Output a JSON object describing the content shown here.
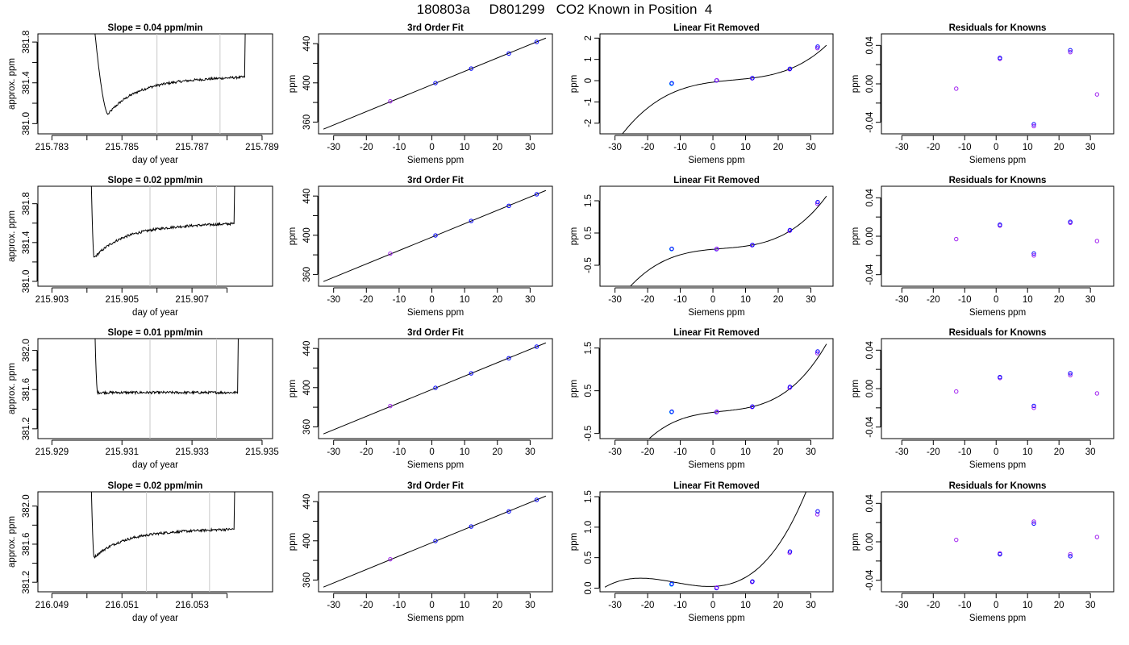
{
  "page": {
    "title": "180803a     D801299   CO2 Known in Position  4"
  },
  "colors": {
    "axis": "#000000",
    "line": "#000000",
    "vline": "#c8c8c8",
    "point_blue": "#0000ff",
    "point_purple": "#a020f0",
    "point_cyan": "#00bfff"
  },
  "chart_data": [
    {
      "type": "line",
      "row": 1,
      "panel": "timeseries",
      "title": "Slope =  0.04  ppm/min",
      "xlabel": "day of year",
      "ylabel": "approx. ppm",
      "xlim": [
        215.7826,
        215.7893
      ],
      "ylim": [
        380.9,
        381.88
      ],
      "xticks": [
        215.783,
        215.784,
        215.785,
        215.786,
        215.787,
        215.788,
        215.789
      ],
      "xtick_labels": [
        "215.783",
        "",
        "215.785",
        "",
        "215.787",
        "",
        "215.789"
      ],
      "yticks": [
        381.0,
        381.2,
        381.4,
        381.6,
        381.8
      ],
      "ytick_labels": [
        "381.0",
        "",
        "381.4",
        "",
        "381.8"
      ],
      "vlines": [
        215.786,
        215.7878
      ],
      "curve": {
        "start": 215.7841,
        "end": 215.7885,
        "drop_x": 215.7846,
        "min_x": 215.7846,
        "min_y": 381.09,
        "plateau_y": 381.41,
        "rise_x": 215.7885
      },
      "series": [
        {
          "name": "CO2",
          "values": []
        }
      ]
    },
    {
      "type": "line",
      "row": 2,
      "panel": "timeseries",
      "title": "Slope =  0.02  ppm/min",
      "xlabel": "day of year",
      "ylabel": "approx. ppm",
      "xlim": [
        215.9026,
        215.9093
      ],
      "ylim": [
        380.95,
        381.98
      ],
      "xticks": [
        215.903,
        215.904,
        215.905,
        215.906,
        215.907,
        215.908
      ],
      "xtick_labels": [
        "215.903",
        "",
        "215.905",
        "",
        "215.907",
        ""
      ],
      "yticks": [
        381.0,
        381.2,
        381.4,
        381.6,
        381.8
      ],
      "ytick_labels": [
        "381.0",
        "",
        "381.4",
        "",
        "381.8"
      ],
      "vlines": [
        215.9058,
        215.9077
      ],
      "curve": {
        "start": 215.9041,
        "end": 215.9082,
        "min_x": 215.9042,
        "min_y": 381.24,
        "plateau_y": 381.55,
        "rise_x": 215.9082
      },
      "series": [
        {
          "name": "CO2",
          "values": []
        }
      ]
    },
    {
      "type": "line",
      "row": 3,
      "panel": "timeseries",
      "title": "Slope =  0.01  ppm/min",
      "xlabel": "day of year",
      "ylabel": "approx. ppm",
      "xlim": [
        215.9286,
        215.9353
      ],
      "ylim": [
        381.1,
        382.12
      ],
      "xticks": [
        215.929,
        215.931,
        215.933,
        215.935
      ],
      "xtick_labels": [
        "215.929",
        "215.931",
        "215.933",
        "215.935"
      ],
      "yticks": [
        381.2,
        381.4,
        381.6,
        381.8,
        382.0
      ],
      "ytick_labels": [
        "381.2",
        "",
        "381.6",
        "",
        "382.0"
      ],
      "vlines": [
        215.9318,
        215.9337
      ],
      "curve": {
        "start": 215.9302,
        "end": 215.9343,
        "min_x": 215.9303,
        "min_y": 381.57,
        "plateau_y": 381.57,
        "rise_x": 215.9343
      },
      "series": [
        {
          "name": "CO2",
          "values": []
        }
      ]
    },
    {
      "type": "line",
      "row": 4,
      "panel": "timeseries",
      "title": "Slope =  0.02  ppm/min",
      "xlabel": "day of year",
      "ylabel": "approx. ppm",
      "xlim": [
        216.0486,
        216.0553
      ],
      "ylim": [
        381.1,
        382.15
      ],
      "xticks": [
        216.049,
        216.05,
        216.051,
        216.052,
        216.053,
        216.054
      ],
      "xtick_labels": [
        "216.049",
        "",
        "216.051",
        "",
        "216.053",
        ""
      ],
      "yticks": [
        381.2,
        381.4,
        381.6,
        381.8,
        382.0
      ],
      "ytick_labels": [
        "381.2",
        "",
        "381.6",
        "",
        "382.0"
      ],
      "vlines": [
        216.0517,
        216.0535
      ],
      "curve": {
        "start": 216.0501,
        "end": 216.0542,
        "min_x": 216.0502,
        "min_y": 381.46,
        "plateau_y": 381.72,
        "rise_x": 216.0542
      },
      "series": [
        {
          "name": "CO2",
          "values": []
        }
      ]
    },
    {
      "type": "scatter",
      "row": 1,
      "panel": "fit",
      "title": "3rd Order Fit",
      "xlabel": "Siemens ppm",
      "ylabel": "ppm",
      "xlim": [
        -34.6,
        36.8
      ],
      "ylim": [
        348,
        450
      ],
      "xticks": [
        -30,
        -20,
        -10,
        0,
        10,
        20,
        30
      ],
      "yticks": [
        360,
        380,
        400,
        420,
        440
      ],
      "ytick_labels": [
        "360",
        "",
        "400",
        "",
        "440"
      ],
      "line": {
        "x": [
          -33.1,
          34.8
        ],
        "y": [
          352.8,
          445.7
        ]
      },
      "points": {
        "x": [
          -12.7,
          1.1,
          12.0,
          23.5,
          32.0
        ],
        "y": [
          381.2,
          399.8,
          414.6,
          430.0,
          441.8
        ],
        "colors": [
          "point_purple",
          "point_blue",
          "point_blue",
          "point_blue",
          "point_blue"
        ]
      }
    },
    {
      "type": "scatter",
      "row": 2,
      "panel": "fit",
      "title": "3rd Order Fit",
      "xlabel": "Siemens ppm",
      "ylabel": "ppm",
      "xlim": [
        -34.6,
        36.8
      ],
      "ylim": [
        348,
        450
      ],
      "xticks": [
        -30,
        -20,
        -10,
        0,
        10,
        20,
        30
      ],
      "yticks": [
        360,
        380,
        400,
        420,
        440
      ],
      "ytick_labels": [
        "360",
        "",
        "400",
        "",
        "440"
      ],
      "line": {
        "x": [
          -33.1,
          34.8
        ],
        "y": [
          352.8,
          445.7
        ]
      },
      "points": {
        "x": [
          -12.7,
          1.1,
          12.0,
          23.5,
          32.0
        ],
        "y": [
          381.2,
          399.8,
          414.6,
          430.0,
          441.8
        ],
        "colors": [
          "point_purple",
          "point_blue",
          "point_blue",
          "point_blue",
          "point_blue"
        ]
      }
    },
    {
      "type": "scatter",
      "row": 3,
      "panel": "fit",
      "title": "3rd Order Fit",
      "xlabel": "Siemens ppm",
      "ylabel": "ppm",
      "xlim": [
        -34.6,
        36.8
      ],
      "ylim": [
        348,
        450
      ],
      "xticks": [
        -30,
        -20,
        -10,
        0,
        10,
        20,
        30
      ],
      "yticks": [
        360,
        380,
        400,
        420,
        440
      ],
      "ytick_labels": [
        "360",
        "",
        "400",
        "",
        "440"
      ],
      "line": {
        "x": [
          -33.1,
          34.8
        ],
        "y": [
          352.8,
          445.7
        ]
      },
      "points": {
        "x": [
          -12.7,
          1.1,
          12.0,
          23.5,
          32.0
        ],
        "y": [
          381.2,
          399.8,
          414.6,
          430.0,
          441.8
        ],
        "colors": [
          "point_purple",
          "point_blue",
          "point_blue",
          "point_blue",
          "point_blue"
        ]
      }
    },
    {
      "type": "scatter",
      "row": 4,
      "panel": "fit",
      "title": "3rd Order Fit",
      "xlabel": "Siemens ppm",
      "ylabel": "ppm",
      "xlim": [
        -34.6,
        36.8
      ],
      "ylim": [
        348,
        450
      ],
      "xticks": [
        -30,
        -20,
        -10,
        0,
        10,
        20,
        30
      ],
      "yticks": [
        360,
        380,
        400,
        420,
        440
      ],
      "ytick_labels": [
        "360",
        "",
        "400",
        "",
        "440"
      ],
      "line": {
        "x": [
          -33.1,
          34.8
        ],
        "y": [
          352.8,
          445.7
        ]
      },
      "points": {
        "x": [
          -12.7,
          1.1,
          12.0,
          23.5,
          32.0
        ],
        "y": [
          381.2,
          399.8,
          414.6,
          430.0,
          441.8
        ],
        "colors": [
          "point_purple",
          "point_blue",
          "point_blue",
          "point_blue",
          "point_blue"
        ]
      }
    },
    {
      "type": "line",
      "row": 1,
      "panel": "linear-removed",
      "title": "Linear Fit Removed",
      "xlabel": "Siemens ppm",
      "ylabel": "ppm",
      "xlim": [
        -34.6,
        36.8
      ],
      "ylim": [
        -2.5,
        2.2
      ],
      "xticks": [
        -30,
        -20,
        -10,
        0,
        10,
        20,
        30
      ],
      "yticks": [
        -2,
        -1,
        0,
        1,
        2
      ],
      "ytick_labels": [
        "-2",
        "-1",
        "0",
        "1",
        "2"
      ],
      "curve_poly": {
        "center": 6.2,
        "cubic": 5.25e-05,
        "linear": 0.0142,
        "offset": 0.03,
        "x": [
          -33.1,
          34.8
        ]
      },
      "points": {
        "x": [
          -12.7,
          -12.6,
          1.1,
          1.2,
          12.0,
          12.1,
          23.5,
          23.6,
          32.0,
          32.1
        ],
        "y": [
          -0.15,
          -0.12,
          0.01,
          0.02,
          0.11,
          0.12,
          0.54,
          0.56,
          1.53,
          1.6
        ],
        "colors": [
          "point_cyan",
          "point_blue",
          "point_blue",
          "point_purple",
          "point_purple",
          "point_blue",
          "point_purple",
          "point_blue",
          "point_purple",
          "point_blue"
        ]
      }
    },
    {
      "type": "line",
      "row": 2,
      "panel": "linear-removed",
      "title": "Linear Fit Removed",
      "xlabel": "Siemens ppm",
      "ylabel": "ppm",
      "xlim": [
        -34.6,
        36.8
      ],
      "ylim": [
        -1.15,
        1.95
      ],
      "xticks": [
        -30,
        -20,
        -10,
        0,
        10,
        20,
        30
      ],
      "yticks": [
        -0.5,
        0.5,
        1.5
      ],
      "ytick_labels": [
        "-0.5",
        "0.5",
        "1.5"
      ],
      "curve_poly": {
        "center": 2.9,
        "cubic": 4.2e-05,
        "linear": 0.0082,
        "offset": 0.02,
        "x": [
          -33.1,
          34.8
        ]
      },
      "points": {
        "x": [
          -12.7,
          -12.6,
          1.1,
          1.2,
          12.0,
          12.1,
          23.5,
          23.6,
          32.0,
          32.1
        ],
        "y": [
          0.0,
          0.01,
          0.0,
          0.01,
          0.12,
          0.13,
          0.57,
          0.59,
          1.41,
          1.46
        ],
        "colors": [
          "point_cyan",
          "point_blue",
          "point_blue",
          "point_purple",
          "point_purple",
          "point_blue",
          "point_purple",
          "point_blue",
          "point_purple",
          "point_blue"
        ]
      }
    },
    {
      "type": "line",
      "row": 3,
      "panel": "linear-removed",
      "title": "Linear Fit Removed",
      "xlabel": "Siemens ppm",
      "ylabel": "ppm",
      "xlim": [
        -34.6,
        36.8
      ],
      "ylim": [
        -0.62,
        1.72
      ],
      "xticks": [
        -30,
        -20,
        -10,
        0,
        10,
        20,
        30
      ],
      "yticks": [
        -0.5,
        0.5,
        1.5
      ],
      "ytick_labels": [
        "-0.5",
        "0.5",
        "1.5"
      ],
      "curve_poly": {
        "center": 2.9,
        "cubic": 4.05e-05,
        "linear": 0.0082,
        "offset": 0.02,
        "x": [
          -33.1,
          34.8
        ]
      },
      "points": {
        "x": [
          -12.7,
          -12.6,
          1.1,
          1.2,
          12.0,
          12.1,
          23.5,
          23.6,
          32.0,
          32.1
        ],
        "y": [
          0.0,
          0.01,
          0.0,
          0.01,
          0.12,
          0.13,
          0.57,
          0.59,
          1.38,
          1.42
        ],
        "colors": [
          "point_cyan",
          "point_blue",
          "point_blue",
          "point_purple",
          "point_purple",
          "point_blue",
          "point_purple",
          "point_blue",
          "point_purple",
          "point_blue"
        ]
      }
    },
    {
      "type": "line",
      "row": 4,
      "panel": "linear-removed",
      "title": "Linear Fit Removed",
      "xlabel": "Siemens ppm",
      "ylabel": "ppm",
      "xlim": [
        -34.6,
        36.8
      ],
      "ylim": [
        -0.06,
        1.58
      ],
      "xticks": [
        -30,
        -20,
        -10,
        0,
        10,
        20,
        30
      ],
      "yticks": [
        0.0,
        0.5,
        1.0,
        1.5
      ],
      "ytick_labels": [
        "0.0",
        "0.5",
        "1.0",
        "1.5"
      ],
      "curve_poly": {
        "center": -11.6,
        "cubic": 2.9e-05,
        "linear": -0.0097,
        "offset": 0.095,
        "x": [
          -33.1,
          34.8
        ]
      },
      "points": {
        "x": [
          -12.7,
          -12.6,
          1.1,
          1.2,
          12.0,
          12.1,
          23.5,
          23.6,
          32.0,
          32.1
        ],
        "y": [
          0.06,
          0.07,
          0.0,
          0.01,
          0.1,
          0.11,
          0.58,
          0.6,
          1.21,
          1.26
        ],
        "colors": [
          "point_cyan",
          "point_blue",
          "point_blue",
          "point_purple",
          "point_purple",
          "point_blue",
          "point_purple",
          "point_blue",
          "point_purple",
          "point_blue"
        ]
      }
    },
    {
      "type": "scatter",
      "row": 1,
      "panel": "residuals",
      "title": "Residuals for Knowns",
      "xlabel": "Siemens ppm",
      "ylabel": "ppm",
      "xlim": [
        -36.5,
        37.4
      ],
      "ylim": [
        -0.052,
        0.052
      ],
      "xticks": [
        -30,
        -20,
        -10,
        0,
        10,
        20,
        30
      ],
      "yticks": [
        -0.04,
        -0.02,
        0.0,
        0.02,
        0.04
      ],
      "ytick_labels": [
        "-0.04",
        "",
        "0.00",
        "",
        "0.04"
      ],
      "points": {
        "x": [
          -12.7,
          1.2,
          1.2,
          12.0,
          12.0,
          23.6,
          23.6,
          32.1
        ],
        "y": [
          -0.005,
          0.026,
          0.027,
          -0.042,
          -0.044,
          0.033,
          0.035,
          -0.011
        ],
        "colors": [
          "point_purple",
          "point_purple",
          "point_blue",
          "point_blue",
          "point_purple",
          "point_purple",
          "point_blue",
          "point_purple"
        ]
      }
    },
    {
      "type": "scatter",
      "row": 2,
      "panel": "residuals",
      "title": "Residuals for Knowns",
      "xlabel": "Siemens ppm",
      "ylabel": "ppm",
      "xlim": [
        -36.5,
        37.4
      ],
      "ylim": [
        -0.052,
        0.052
      ],
      "xticks": [
        -30,
        -20,
        -10,
        0,
        10,
        20,
        30
      ],
      "yticks": [
        -0.04,
        -0.02,
        0.0,
        0.02,
        0.04
      ],
      "ytick_labels": [
        "-0.04",
        "",
        "0.00",
        "",
        "0.04"
      ],
      "points": {
        "x": [
          -12.7,
          1.2,
          1.2,
          12.0,
          12.0,
          23.6,
          23.6,
          32.1
        ],
        "y": [
          -0.003,
          0.011,
          0.012,
          -0.018,
          -0.02,
          0.014,
          0.015,
          -0.005
        ],
        "colors": [
          "point_purple",
          "point_purple",
          "point_blue",
          "point_blue",
          "point_purple",
          "point_purple",
          "point_blue",
          "point_purple"
        ]
      }
    },
    {
      "type": "scatter",
      "row": 3,
      "panel": "residuals",
      "title": "Residuals for Knowns",
      "xlabel": "Siemens ppm",
      "ylabel": "ppm",
      "xlim": [
        -36.5,
        37.4
      ],
      "ylim": [
        -0.052,
        0.052
      ],
      "xticks": [
        -30,
        -20,
        -10,
        0,
        10,
        20,
        30
      ],
      "yticks": [
        -0.04,
        -0.02,
        0.0,
        0.02,
        0.04
      ],
      "ytick_labels": [
        "-0.04",
        "",
        "0.00",
        "",
        "0.04"
      ],
      "points": {
        "x": [
          -12.7,
          1.2,
          1.2,
          12.0,
          12.0,
          23.6,
          23.6,
          32.1
        ],
        "y": [
          -0.003,
          0.011,
          0.012,
          -0.018,
          -0.02,
          0.014,
          0.016,
          -0.005
        ],
        "colors": [
          "point_purple",
          "point_purple",
          "point_blue",
          "point_blue",
          "point_purple",
          "point_purple",
          "point_blue",
          "point_purple"
        ]
      }
    },
    {
      "type": "scatter",
      "row": 4,
      "panel": "residuals",
      "title": "Residuals for Knowns",
      "xlabel": "Siemens ppm",
      "ylabel": "ppm",
      "xlim": [
        -36.5,
        37.4
      ],
      "ylim": [
        -0.052,
        0.052
      ],
      "xticks": [
        -30,
        -20,
        -10,
        0,
        10,
        20,
        30
      ],
      "yticks": [
        -0.04,
        -0.02,
        0.0,
        0.02,
        0.04
      ],
      "ytick_labels": [
        "-0.04",
        "",
        "0.00",
        "",
        "0.04"
      ],
      "points": {
        "x": [
          -12.7,
          1.2,
          1.2,
          12.0,
          12.0,
          23.6,
          23.6,
          32.1
        ],
        "y": [
          0.002,
          -0.012,
          -0.013,
          0.019,
          0.021,
          -0.013,
          -0.015,
          0.005
        ],
        "colors": [
          "point_purple",
          "point_purple",
          "point_blue",
          "point_blue",
          "point_purple",
          "point_purple",
          "point_blue",
          "point_purple"
        ]
      }
    }
  ]
}
